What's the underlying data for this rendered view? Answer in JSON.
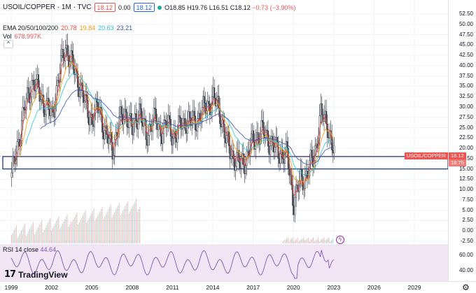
{
  "header": {
    "symbol": "USOIL/COPPER · 1M · TVC",
    "price_box": "18.12",
    "change_box": "0.00",
    "price_box2": "18.12",
    "ohlc_o": "O18.85",
    "ohlc_h": "H19.76",
    "ohlc_l": "L16.51",
    "ohlc_c": "C18.12",
    "ohlc_change": "−0.73 (−3.90%)"
  },
  "indicators": {
    "ema_label": "EMA 20/50/100/200",
    "ema_values": [
      "20.78",
      "19.84",
      "20.63",
      "23.21"
    ],
    "ema_colors": [
      "#f44336",
      "#ff9800",
      "#26c6da",
      "#3f51b5"
    ],
    "vol_label": "Vol",
    "vol_value": "678.997K",
    "rsi_label": "RSI 14 close",
    "rsi_value": "44.64"
  },
  "price_axis": {
    "ticks": [
      "52.50",
      "50.00",
      "47.50",
      "45.00",
      "42.50",
      "40.00",
      "37.50",
      "35.00",
      "32.50",
      "30.00",
      "27.50",
      "25.00",
      "22.50",
      "20.00",
      "17.50",
      "15.00",
      "12.50",
      "10.00",
      "7.50",
      "5.00",
      "2.50",
      "0.00",
      "-2.50"
    ],
    "rsi_ticks": [
      "60.00",
      "40.00"
    ],
    "last_price": "18.12",
    "countdown": "18:7h",
    "symbol_tag": "USOIL/COPPER"
  },
  "time_axis": {
    "ticks": [
      "1999",
      "2002",
      "2005",
      "2008",
      "2011",
      "2014",
      "2017",
      "2020",
      "2023",
      "2026",
      "2029"
    ]
  },
  "branding": {
    "logo_text": "TradingView"
  },
  "colors": {
    "up": "#26a69a",
    "down": "#ef5350",
    "box": "#1e3a8a",
    "rsi": "#7e57c2",
    "rsi_bg": "#f3e5f5"
  },
  "chart_data": {
    "type": "candlestick",
    "title": "USOIL/COPPER · 1M · TVC",
    "x_unit": "year",
    "ylim": [
      -2.5,
      52.5
    ],
    "series": [
      {
        "name": "USOIL/COPPER",
        "points": [
          [
            1999.0,
            13
          ],
          [
            1999.5,
            22
          ],
          [
            2000.0,
            30
          ],
          [
            2000.5,
            36
          ],
          [
            2001.0,
            34
          ],
          [
            2001.5,
            30
          ],
          [
            2002.0,
            28
          ],
          [
            2002.5,
            37
          ],
          [
            2003.0,
            45
          ],
          [
            2003.5,
            40
          ],
          [
            2004.0,
            36
          ],
          [
            2004.5,
            30
          ],
          [
            2005.0,
            27
          ],
          [
            2005.5,
            30
          ],
          [
            2006.0,
            23
          ],
          [
            2006.5,
            20
          ],
          [
            2007.0,
            26
          ],
          [
            2007.5,
            29
          ],
          [
            2008.0,
            24
          ],
          [
            2008.5,
            30
          ],
          [
            2009.0,
            22
          ],
          [
            2009.5,
            28
          ],
          [
            2010.0,
            24
          ],
          [
            2010.5,
            26
          ],
          [
            2011.0,
            23
          ],
          [
            2011.5,
            25
          ],
          [
            2012.0,
            27
          ],
          [
            2012.5,
            26
          ],
          [
            2013.0,
            28
          ],
          [
            2013.5,
            30
          ],
          [
            2014.0,
            32
          ],
          [
            2014.5,
            29
          ],
          [
            2015.0,
            21
          ],
          [
            2015.5,
            18
          ],
          [
            2016.0,
            16
          ],
          [
            2016.5,
            18
          ],
          [
            2017.0,
            22
          ],
          [
            2017.5,
            24
          ],
          [
            2018.0,
            23
          ],
          [
            2018.5,
            20
          ],
          [
            2019.0,
            19
          ],
          [
            2019.5,
            18
          ],
          [
            2020.0,
            7
          ],
          [
            2020.5,
            12
          ],
          [
            2021.0,
            14
          ],
          [
            2021.5,
            18
          ],
          [
            2022.0,
            28
          ],
          [
            2022.5,
            26
          ],
          [
            2023.0,
            18.12
          ]
        ]
      }
    ],
    "ema": [
      {
        "name": "EMA 20",
        "last": 20.78
      },
      {
        "name": "EMA 50",
        "last": 19.84
      },
      {
        "name": "EMA 100",
        "last": 20.63
      },
      {
        "name": "EMA 200",
        "last": 23.21
      }
    ],
    "box_zone": [
      15.0,
      18.0
    ],
    "rsi": {
      "name": "RSI 14 close",
      "last": 44.64,
      "ylim": [
        30,
        70
      ]
    }
  }
}
